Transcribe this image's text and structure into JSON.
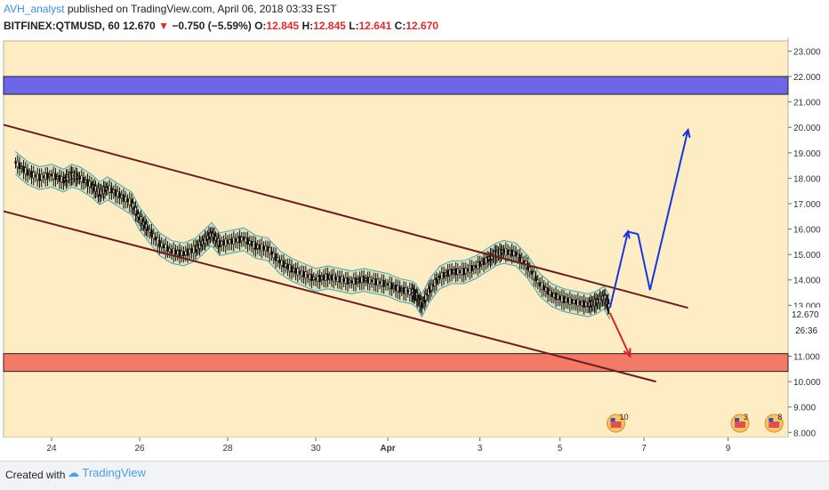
{
  "header": {
    "author": "AVH_analyst",
    "published": "published on TradingView.com, April 06, 2018 03:33 EST",
    "symbol": "BITFINEX:QTMUSD, 60",
    "last": "12.670",
    "change_arrow": "▼",
    "change": "−0.750 (−5.59%)",
    "o_label": "O:",
    "o": "12.845",
    "h_label": "H:",
    "h": "12.845",
    "l_label": "L:",
    "l": "12.641",
    "c_label": "C:",
    "c": "12.670"
  },
  "chart_data": {
    "type": "line",
    "title": "BITFINEX:QTMUSD, 60",
    "x_ticks": [
      "24",
      "26",
      "28",
      "30",
      "Apr",
      "3",
      "5",
      "7",
      "9"
    ],
    "y_ticks": [
      "23.000",
      "22.000",
      "21.000",
      "20.000",
      "19.000",
      "18.000",
      "17.000",
      "16.000",
      "15.000",
      "14.000",
      "13.000",
      "11.000",
      "10.000",
      "9.000",
      "8.000"
    ],
    "ylim": [
      7.8,
      23.4
    ],
    "last_price_label": "12.670",
    "countdown_label": "26:36",
    "zones": [
      {
        "name": "resistance",
        "from": 21.3,
        "to": 22.0,
        "color": "#6e66e8"
      },
      {
        "name": "support",
        "from": 10.4,
        "to": 11.1,
        "color": "#f47a68"
      }
    ],
    "price_path": [
      [
        0,
        18.6
      ],
      [
        0.3,
        18.2
      ],
      [
        0.6,
        18.0
      ],
      [
        0.9,
        18.1
      ],
      [
        1.2,
        17.9
      ],
      [
        1.4,
        18.1
      ],
      [
        1.6,
        18.0
      ],
      [
        1.9,
        17.7
      ],
      [
        2.1,
        17.4
      ],
      [
        2.3,
        17.6
      ],
      [
        2.6,
        17.3
      ],
      [
        2.9,
        17.0
      ],
      [
        3.1,
        16.4
      ],
      [
        3.3,
        16.0
      ],
      [
        3.6,
        15.4
      ],
      [
        3.9,
        15.1
      ],
      [
        4.2,
        15.0
      ],
      [
        4.5,
        15.2
      ],
      [
        4.7,
        15.5
      ],
      [
        4.9,
        15.8
      ],
      [
        5.1,
        15.4
      ],
      [
        5.4,
        15.5
      ],
      [
        5.7,
        15.6
      ],
      [
        6.0,
        15.3
      ],
      [
        6.3,
        15.2
      ],
      [
        6.6,
        14.7
      ],
      [
        6.9,
        14.4
      ],
      [
        7.2,
        14.2
      ],
      [
        7.5,
        14.0
      ],
      [
        7.8,
        14.1
      ],
      [
        8.1,
        14.0
      ],
      [
        8.4,
        13.9
      ],
      [
        8.7,
        14.0
      ],
      [
        9.0,
        13.9
      ],
      [
        9.3,
        13.8
      ],
      [
        9.6,
        13.6
      ],
      [
        9.9,
        13.5
      ],
      [
        10.0,
        13.4
      ],
      [
        10.15,
        13.0
      ],
      [
        10.35,
        13.6
      ],
      [
        10.6,
        14.1
      ],
      [
        10.9,
        14.3
      ],
      [
        11.2,
        14.3
      ],
      [
        11.5,
        14.5
      ],
      [
        11.8,
        14.8
      ],
      [
        12.0,
        15.0
      ],
      [
        12.2,
        15.1
      ],
      [
        12.5,
        15.0
      ],
      [
        12.8,
        14.5
      ],
      [
        13.1,
        13.8
      ],
      [
        13.4,
        13.4
      ],
      [
        13.7,
        13.2
      ],
      [
        14.0,
        13.1
      ],
      [
        14.3,
        13.0
      ],
      [
        14.5,
        13.1
      ],
      [
        14.7,
        13.3
      ],
      [
        14.85,
        12.9
      ]
    ],
    "upper_channel": [
      [
        -0.3,
        20.1
      ],
      [
        16.8,
        12.9
      ]
    ],
    "lower_channel": [
      [
        -0.3,
        16.7
      ],
      [
        16.0,
        10.0
      ]
    ],
    "projection_up": [
      [
        14.85,
        12.9
      ],
      [
        15.3,
        15.9
      ],
      [
        15.55,
        15.8
      ],
      [
        15.85,
        13.6
      ],
      [
        16.8,
        19.9
      ]
    ],
    "projection_down": [
      [
        14.85,
        12.7
      ],
      [
        15.35,
        11.0
      ]
    ],
    "projection_up_color": "#1a33e0",
    "projection_down_color": "#e02020",
    "channel_color": "#6b1d1d",
    "price_color": "#111111",
    "band_fill": "#d6ddb8",
    "band_line": "#4ea0b0",
    "ma_color": "#c06a4a",
    "background": "#fdecc4",
    "events": [
      {
        "x": 15.0,
        "label": "10"
      },
      {
        "x": 18.1,
        "label": "3"
      },
      {
        "x": 18.95,
        "label": "8"
      }
    ]
  },
  "footer": {
    "created": "Created with",
    "brand": "TradingView"
  }
}
